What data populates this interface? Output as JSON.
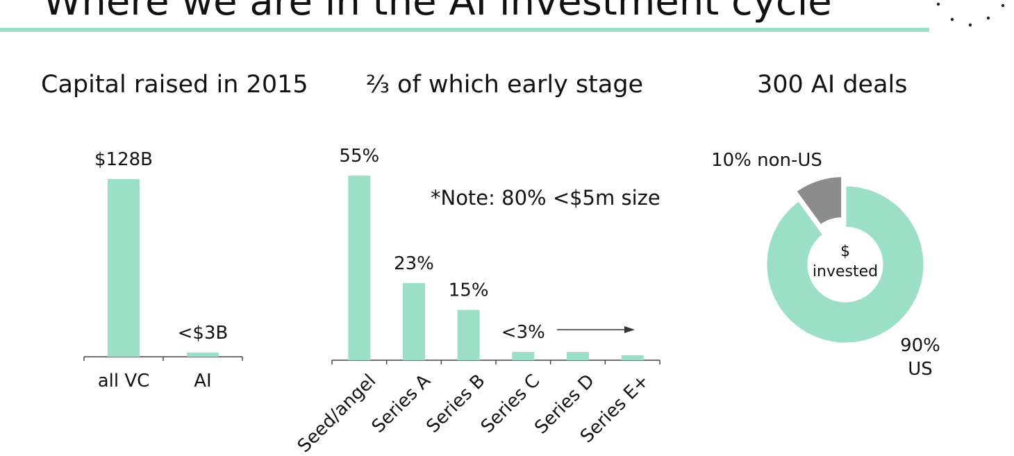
{
  "slide": {
    "title": "Where we are in the AI investment cycle",
    "accent_color": "#9bdfc6",
    "secondary_color": "#8c8c8c"
  },
  "chart_data": [
    {
      "type": "bar",
      "title": "Capital raised in 2015",
      "categories": [
        "all VC",
        "AI"
      ],
      "values": [
        128,
        3
      ],
      "value_labels": [
        "$128B",
        "<$3B"
      ],
      "unit": "$B",
      "ylim": [
        0,
        130
      ],
      "grid": false
    },
    {
      "type": "bar",
      "title": "⅔ of which early stage",
      "categories": [
        "Seed/angel",
        "Series A",
        "Series B",
        "Series C",
        "Series D",
        "Series E+"
      ],
      "values": [
        55,
        23,
        15,
        2.5,
        2.5,
        1.5
      ],
      "value_labels": [
        "55%",
        "23%",
        "15%",
        "<3%",
        "",
        ""
      ],
      "unit": "%",
      "ylim": [
        0,
        55
      ],
      "grid": false,
      "annotation": "*Note: 80% <$5m size"
    },
    {
      "type": "pie",
      "donut": true,
      "title": "300 AI deals",
      "center_label": [
        "$",
        "invested"
      ],
      "slices": [
        {
          "label": "90% US",
          "label_lines": [
            "90%",
            "US"
          ],
          "value": 90,
          "color": "#9bdfc6"
        },
        {
          "label": "10% non-US",
          "label_lines": [
            "10% non-US"
          ],
          "value": 10,
          "color": "#8c8c8c"
        }
      ]
    }
  ]
}
